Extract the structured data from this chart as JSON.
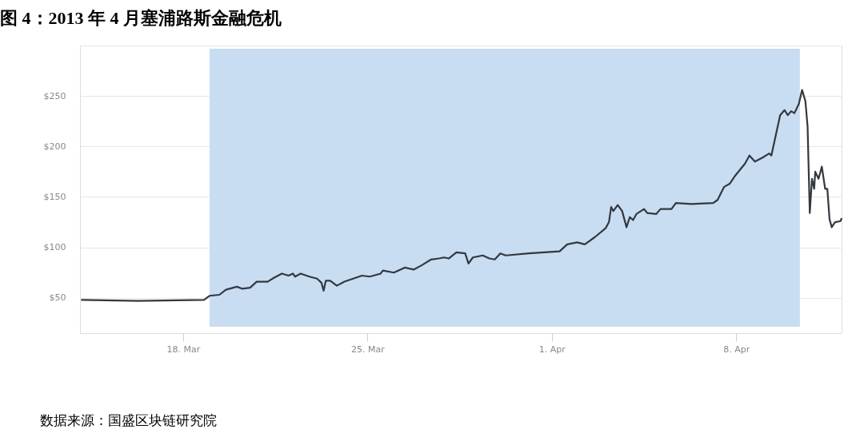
{
  "chart_data": {
    "type": "line",
    "title": "图 4：2013 年 4 月塞浦路斯金融危机",
    "annotations": [
      "数据来源：国盛区块链研究院"
    ],
    "x": [
      "2013-03-14T03:00",
      "2013-03-16T07:00",
      "2013-03-18T19:00",
      "2013-03-19T00:00",
      "2013-03-19T09:00",
      "2013-03-19T15:00",
      "2013-03-20T01:00",
      "2013-03-20T06:00",
      "2013-03-20T13:00",
      "2013-03-20T19:00",
      "2013-03-21T05:00",
      "2013-03-21T11:00",
      "2013-03-21T18:00",
      "2013-03-22T00:00",
      "2013-03-22T04:00",
      "2013-03-22T06:00",
      "2013-03-22T11:00",
      "2013-03-22T19:00",
      "2013-03-23T02:00",
      "2013-03-23T06:00",
      "2013-03-23T08:00",
      "2013-03-23T10:00",
      "2013-03-23T14:00",
      "2013-03-23T20:00",
      "2013-03-24T03:00",
      "2013-03-24T11:00",
      "2013-03-24T19:00",
      "2013-03-25T02:00",
      "2013-03-25T12:00",
      "2013-03-25T14:00",
      "2013-03-26T00:00",
      "2013-03-26T10:00",
      "2013-03-26T18:00",
      "2013-03-27T01:00",
      "2013-03-27T10:00",
      "2013-03-27T17:00",
      "2013-03-27T22:00",
      "2013-03-28T02:00",
      "2013-03-28T09:00",
      "2013-03-28T17:00",
      "2013-03-28T20:00",
      "2013-03-29T00:00",
      "2013-03-29T09:00",
      "2013-03-29T15:00",
      "2013-03-29T20:00",
      "2013-03-30T01:00",
      "2013-03-30T06:00",
      "2013-03-31T03:00",
      "2013-04-01T07:00",
      "2013-04-01T14:00",
      "2013-04-01T23:00",
      "2013-04-02T06:00",
      "2013-04-02T15:00",
      "2013-04-03T01:00",
      "2013-04-03T04:00",
      "2013-04-03T06:00",
      "2013-04-03T08:00",
      "2013-04-03T12:00",
      "2013-04-03T16:00",
      "2013-04-03T20:00",
      "2013-04-03T23:00",
      "2013-04-04T02:00",
      "2013-04-04T05:00",
      "2013-04-04T12:00",
      "2013-04-04T15:00",
      "2013-04-04T23:00",
      "2013-04-05T03:00",
      "2013-04-05T13:00",
      "2013-04-05T17:00",
      "2013-04-06T07:00",
      "2013-04-07T03:00",
      "2013-04-07T07:00",
      "2013-04-07T13:00",
      "2013-04-07T18:00",
      "2013-04-07T23:00",
      "2013-04-08T08:00",
      "2013-04-08T12:00",
      "2013-04-08T17:00",
      "2013-04-09T00:00",
      "2013-04-09T06:00",
      "2013-04-09T08:00",
      "2013-04-09T16:00",
      "2013-04-09T20:00",
      "2013-04-09T23:00",
      "2013-04-10T02:00",
      "2013-04-10T05:00",
      "2013-04-10T09:00",
      "2013-04-10T12:00",
      "2013-04-10T15:00",
      "2013-04-10T17:00",
      "2013-04-10T19:00",
      "2013-04-10T21:00",
      "2013-04-10T23:00",
      "2013-04-11T00:00",
      "2013-04-11T03:00",
      "2013-04-11T06:00",
      "2013-04-11T09:00",
      "2013-04-11T11:00",
      "2013-04-11T13:00",
      "2013-04-11T15:00",
      "2013-04-11T18:00",
      "2013-04-11T23:00",
      "2013-04-12T00:00"
    ],
    "series": [
      {
        "color": "#333840",
        "values": [
          48,
          47,
          48,
          52,
          53,
          58,
          61,
          59,
          60,
          66,
          66,
          70,
          74,
          72,
          74,
          71,
          74,
          71,
          69,
          65,
          57,
          67,
          67,
          62,
          66,
          69,
          72,
          71,
          74,
          77,
          75,
          80,
          78,
          82,
          88,
          89,
          90,
          89,
          95,
          94,
          84,
          90,
          92,
          89,
          88,
          94,
          92,
          94,
          96,
          103,
          105,
          103,
          110,
          119,
          125,
          140,
          136,
          142,
          136,
          120,
          130,
          127,
          133,
          138,
          134,
          133,
          138,
          138,
          144,
          143,
          144,
          147,
          160,
          163,
          171,
          183,
          191,
          185,
          189,
          193,
          191,
          231,
          236,
          231,
          235,
          233,
          242,
          256,
          245,
          220,
          134,
          168,
          158,
          175,
          168,
          180,
          158,
          158,
          128,
          120,
          125,
          126,
          129
        ]
      }
    ],
    "xlim": [
      "2013-03-14T02:00",
      "2013-04-12T00:00"
    ],
    "xticks": [
      {
        "value": "2013-03-18T00:00",
        "label": "18. Mar"
      },
      {
        "value": "2013-03-25T00:00",
        "label": "25. Mar"
      },
      {
        "value": "2013-04-01T00:00",
        "label": "1. Apr"
      },
      {
        "value": "2013-04-08T00:00",
        "label": "8. Apr"
      }
    ],
    "ylim": [
      15,
      300
    ],
    "yticks": [
      {
        "value": 50,
        "label": "$50"
      },
      {
        "value": 100,
        "label": "$100"
      },
      {
        "value": 150,
        "label": "$150"
      },
      {
        "value": 200,
        "label": "$200"
      },
      {
        "value": 250,
        "label": "$250"
      },
      {
        "value": 300,
        "label": null
      }
    ],
    "bands": [
      {
        "axis": "x",
        "from": "2013-03-19T00:00",
        "to": "2013-04-10T10:00",
        "color": "#c8ddf2"
      }
    ],
    "grid": "y",
    "line_style": "solid",
    "marker": "none"
  }
}
